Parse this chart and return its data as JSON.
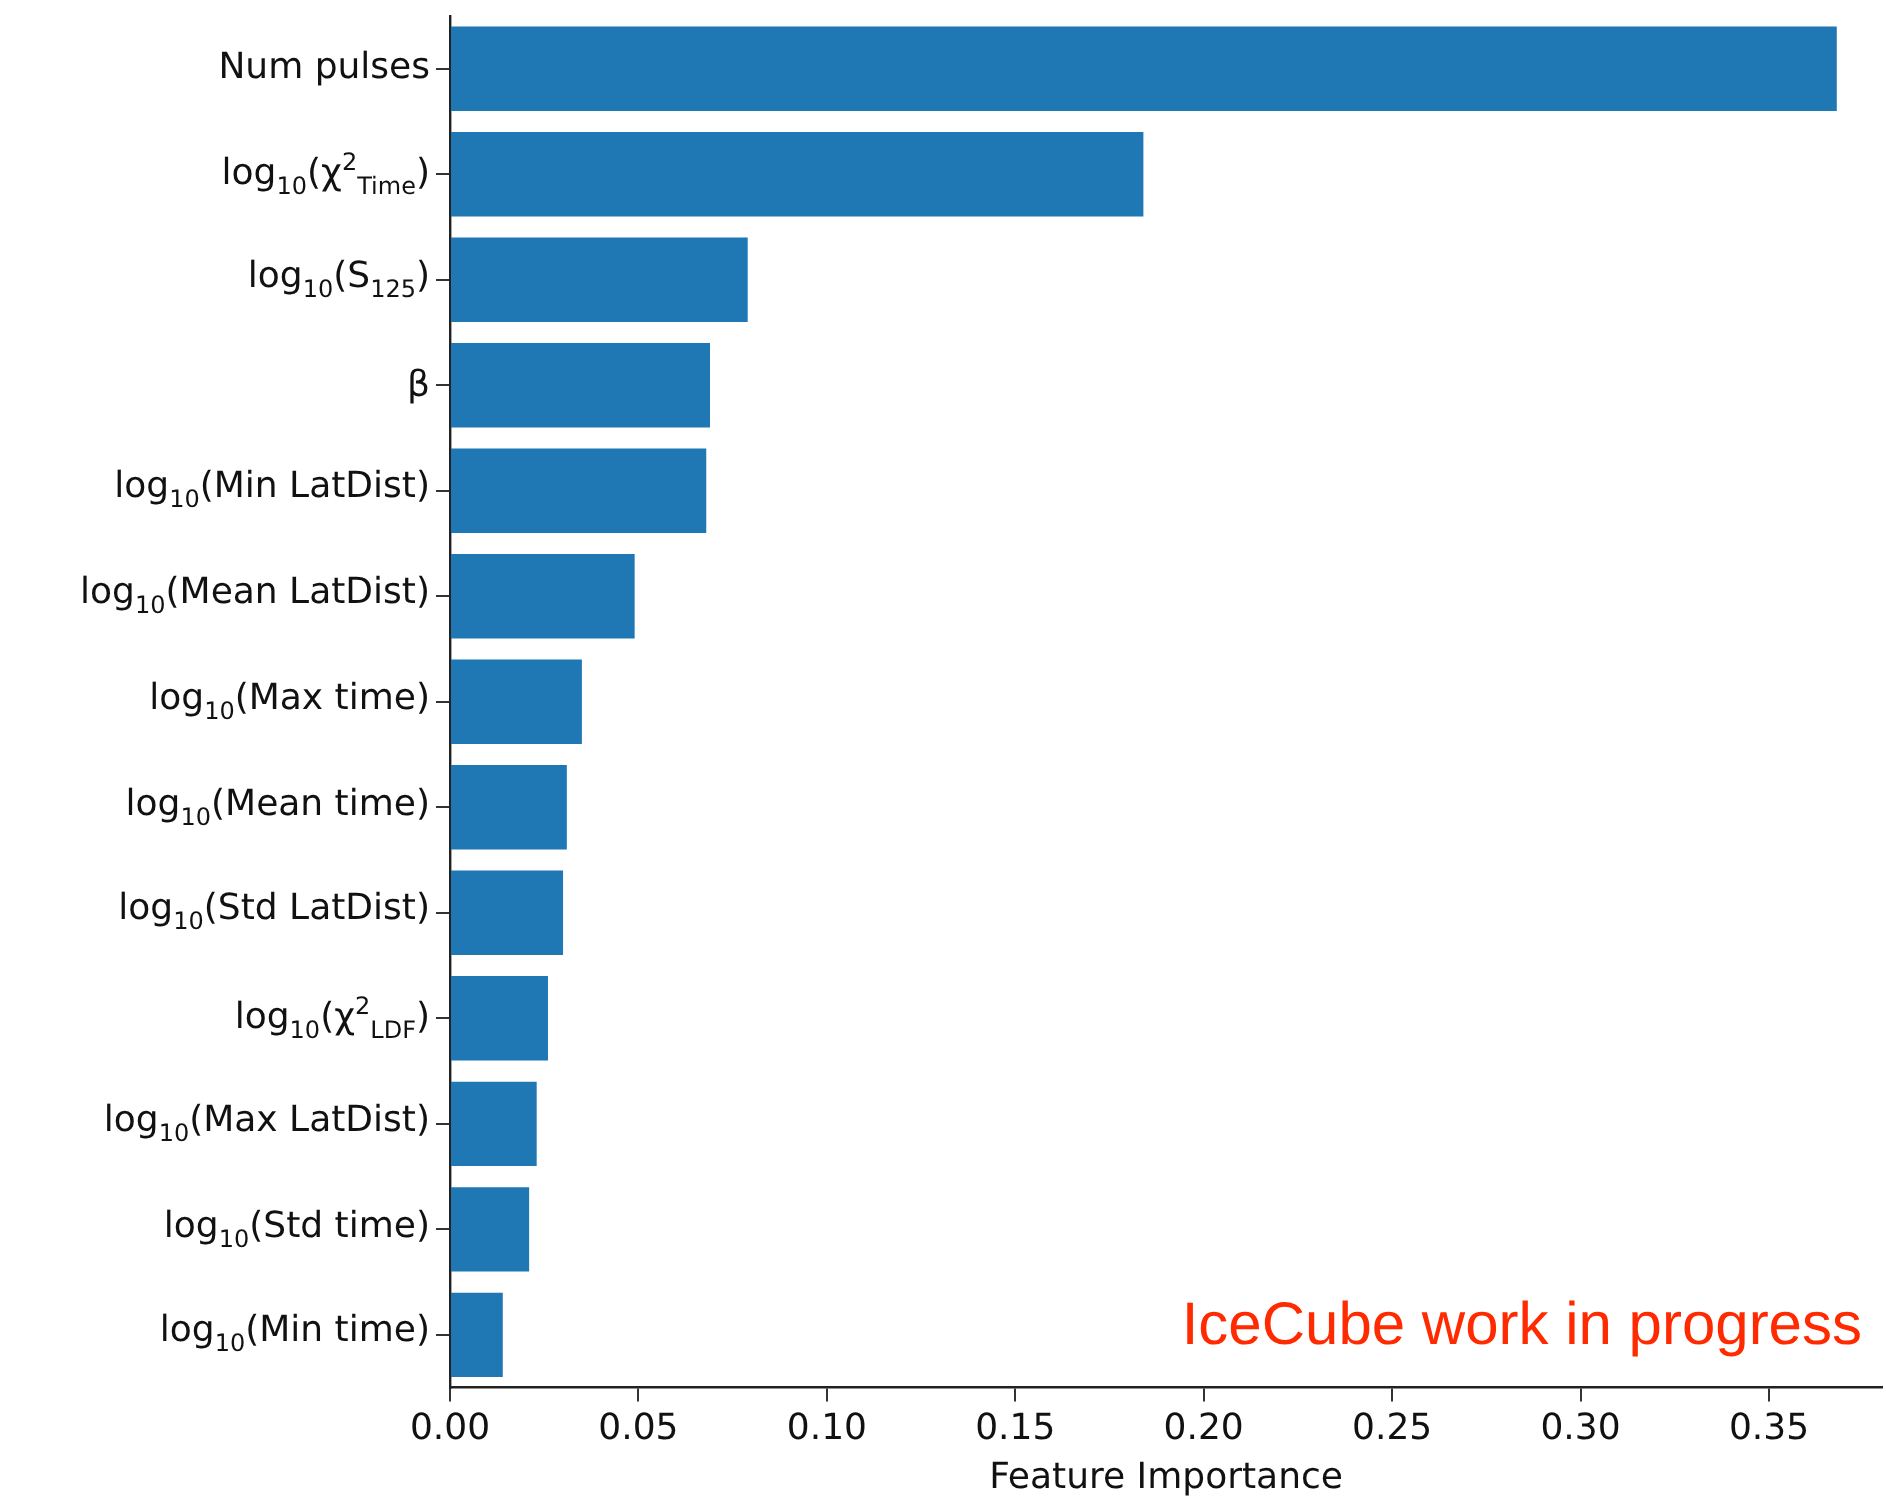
{
  "chart_data": {
    "type": "bar",
    "orientation": "horizontal",
    "categories": [
      "Num pulses",
      "log$_{10}$(χ$^{2}$$_{Time}$)",
      "log$_{10}$(S$_{125}$)",
      "β",
      "log$_{10}$(Min LatDist)",
      "log$_{10}$(Mean LatDist)",
      "log$_{10}$(Max time)",
      "log$_{10}$(Mean time)",
      "log$_{10}$(Std LatDist)",
      "log$_{10}$(χ$^{2}$$_{LDF}$)",
      "log$_{10}$(Max LatDist)",
      "log$_{10}$(Std time)",
      "log$_{10}$(Min time)"
    ],
    "values": [
      0.368,
      0.184,
      0.079,
      0.069,
      0.068,
      0.049,
      0.035,
      0.031,
      0.03,
      0.026,
      0.023,
      0.021,
      0.014
    ],
    "color": "#1f77b4",
    "xlim": [
      0,
      0.38
    ],
    "xticks": [
      {
        "value": 0,
        "label": "0.00"
      },
      0.05,
      {
        "value": 0.1,
        "label": "0.10"
      },
      0.15,
      {
        "value": 0.2,
        "label": "0.20"
      },
      0.25,
      {
        "value": 0.3,
        "label": "0.30"
      },
      0.35
    ],
    "xlabel": "Feature Importance",
    "annotations": [
      "IceCube work in progress"
    ],
    "grid": false,
    "legend": false
  }
}
